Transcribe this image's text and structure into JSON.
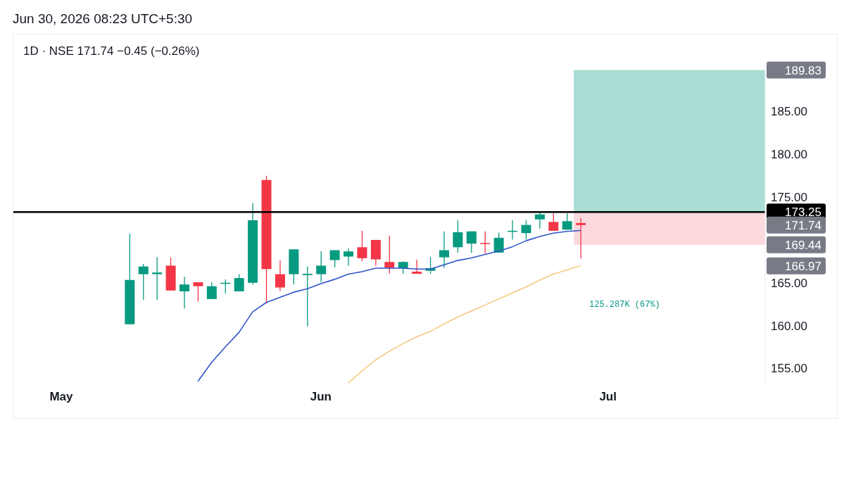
{
  "chart_data": {
    "type": "candlestick",
    "title": "Jun 30, 2026 08:23 UTC+5:30",
    "subtitle": "1D · NSE  171.74  −0.45 (−0.26%)",
    "categories": [
      null,
      null,
      null,
      "May",
      null,
      null,
      null,
      null,
      null,
      null,
      null,
      null,
      null,
      null,
      null,
      null,
      null,
      null,
      null,
      null,
      null,
      null,
      "Jun",
      null,
      null,
      null,
      null,
      null,
      null,
      null,
      null,
      null,
      null,
      null,
      null,
      null,
      null,
      null,
      null,
      null,
      null,
      null,
      null,
      "Jul",
      null,
      null,
      null,
      null,
      null,
      null,
      null,
      null,
      null,
      null,
      null
    ],
    "ohlc": [
      null,
      null,
      null,
      null,
      null,
      null,
      null,
      null,
      [
        160.16,
        170.74,
        160.16,
        165.33
      ],
      [
        166.0,
        167.2,
        163.0,
        166.9
      ],
      [
        166.0,
        168.0,
        163.0,
        166.2
      ],
      [
        167.0,
        167.95,
        164.1,
        164.1
      ],
      [
        164.0,
        165.7,
        162.0,
        164.8
      ],
      [
        165.06,
        165.06,
        162.8,
        164.6
      ],
      [
        163.1,
        165.06,
        163.1,
        164.6
      ],
      [
        164.9,
        165.4,
        163.75,
        165.0
      ],
      [
        164.0,
        166.0,
        164.0,
        165.55
      ],
      [
        165.0,
        174.3,
        164.8,
        172.3
      ],
      [
        177.0,
        177.5,
        162.6,
        166.6
      ],
      [
        166.0,
        167.6,
        164.04,
        164.45
      ],
      [
        166.0,
        168.9,
        164.8,
        168.9
      ],
      [
        165.9,
        166.9,
        159.9,
        166.05
      ],
      [
        166.0,
        168.7,
        165.06,
        167.0
      ],
      [
        167.65,
        168.8,
        166.8,
        168.8
      ],
      [
        168.06,
        169.0,
        167.0,
        168.66
      ],
      [
        169.15,
        171.07,
        167.5,
        167.87
      ],
      [
        170.0,
        170.0,
        167.0,
        167.73
      ],
      [
        167.43,
        170.5,
        166.05,
        166.75
      ],
      [
        166.7,
        167.5,
        166.05,
        167.43
      ],
      [
        166.3,
        167.7,
        166.05,
        166.05
      ],
      [
        166.4,
        168.0,
        166.05,
        166.7
      ],
      [
        167.97,
        171.0,
        166.75,
        168.8
      ],
      [
        169.15,
        172.3,
        168.5,
        170.9
      ],
      [
        169.57,
        171.0,
        168.5,
        171.0
      ],
      [
        169.65,
        171.0,
        168.4,
        169.57
      ],
      [
        168.52,
        170.85,
        168.52,
        170.25
      ],
      [
        170.98,
        172.3,
        170.05,
        171.07
      ],
      [
        170.8,
        172.3,
        170.05,
        171.75
      ],
      [
        172.4,
        173.3,
        171.3,
        172.98
      ],
      [
        172.1,
        173.1,
        171.07,
        171.07
      ],
      [
        171.2,
        173.1,
        171.2,
        172.19
      ],
      [
        171.97,
        172.57,
        167.84,
        171.74
      ],
      null,
      null,
      null,
      null,
      null,
      null,
      null,
      null,
      null,
      null,
      null,
      null,
      null
    ],
    "colors": [
      null,
      null,
      null,
      null,
      null,
      null,
      null,
      null,
      "#089981",
      "#089981",
      "#089981",
      "#f23645",
      "#089981",
      "#f23645",
      "#089981",
      "#089981",
      "#089981",
      "#089981",
      "#f23645",
      "#f23645",
      "#089981",
      "#089981",
      "#089981",
      "#089981",
      "#089981",
      "#f23645",
      "#f23645",
      "#f23645",
      "#089981",
      "#f23645",
      "#089981",
      "#089981",
      "#089981",
      "#089981",
      "#f23645",
      "#089981",
      "#089981",
      "#089981",
      "#089981",
      "#f23645",
      "#089981",
      "#f23645",
      null,
      null,
      null,
      null,
      null,
      null,
      null,
      null,
      null,
      null,
      null,
      null,
      null
    ],
    "series": [
      {
        "type": "line",
        "color": "#2f54c9",
        "values": [
          null,
          null,
          null,
          null,
          null,
          null,
          null,
          null,
          null,
          null,
          null,
          null,
          null,
          153.5,
          155.7,
          157.5,
          159.2,
          161.6,
          162.7,
          163.3,
          163.9,
          164.3,
          164.9,
          165.4,
          166.0,
          166.3,
          166.7,
          166.7,
          166.7,
          166.6,
          166.6,
          167.1,
          167.6,
          167.9,
          168.3,
          168.7,
          169.2,
          169.9,
          170.4,
          170.8,
          171.0,
          171.1,
          null,
          null,
          null,
          null,
          null,
          null,
          null,
          null,
          null,
          null,
          null,
          null,
          null
        ]
      },
      {
        "type": "line",
        "color": "#f5c77e",
        "values": [
          null,
          null,
          null,
          null,
          null,
          null,
          null,
          null,
          null,
          null,
          null,
          null,
          null,
          null,
          null,
          null,
          null,
          null,
          null,
          null,
          null,
          null,
          null,
          null,
          153.3,
          154.7,
          156.0,
          157.0,
          157.9,
          158.7,
          159.3,
          160.2,
          161.0,
          161.7,
          162.4,
          163.1,
          163.8,
          164.5,
          165.3,
          166.0,
          166.5,
          167.0,
          null,
          null,
          null,
          null,
          null,
          null,
          null,
          null,
          null,
          null,
          null,
          null,
          null
        ]
      }
    ],
    "ylim": [
      152.9,
      190.7
    ],
    "yticks": [
      {
        "value": 155,
        "label": "155.00"
      },
      {
        "value": 160,
        "label": "160.00"
      },
      {
        "value": 165,
        "label": "165.00"
      },
      {
        "value": 175,
        "label": "175.00"
      },
      {
        "value": 180,
        "label": "180.00"
      },
      {
        "value": 185,
        "label": "185.00"
      }
    ],
    "ref_lines": [
      {
        "axis": "y",
        "value": 173.25,
        "label": "173.25",
        "color": "#000000",
        "line_style": "solid"
      }
    ],
    "bands": [
      {
        "axis": "y",
        "from": 173.25,
        "to": 189.83,
        "color": "#a9ddd4"
      },
      {
        "axis": "y",
        "from": 169.44,
        "to": 173.25,
        "color": "#fcd9dc"
      }
    ],
    "annotations": [
      "125.287K (67%)",
      "189.83",
      "171.74",
      "169.44",
      "166.97"
    ]
  }
}
